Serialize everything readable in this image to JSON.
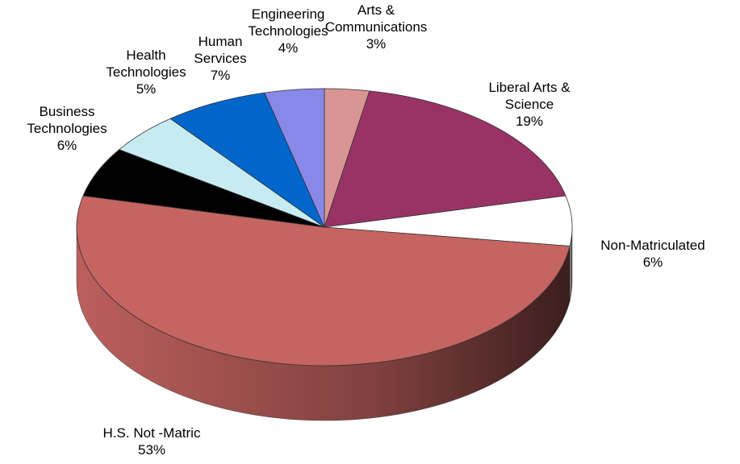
{
  "chart_data": {
    "type": "pie",
    "title": "",
    "slices": [
      {
        "label_lines": [
          "Arts &",
          "Communications"
        ],
        "pct_text": "3%",
        "value": 3,
        "color": "#D99594"
      },
      {
        "label_lines": [
          "Liberal Arts &",
          "Science"
        ],
        "pct_text": "19%",
        "value": 19,
        "color": "#993366"
      },
      {
        "label_lines": [
          "Non-Matriculated"
        ],
        "pct_text": "6%",
        "value": 6,
        "color": "#FFFFFF"
      },
      {
        "label_lines": [
          "H.S. Not -Matric"
        ],
        "pct_text": "53%",
        "value": 53,
        "color": "#C66461"
      },
      {
        "label_lines": [
          "Business",
          "Technologies"
        ],
        "pct_text": "6%",
        "value": 6,
        "color": "#000000"
      },
      {
        "label_lines": [
          "Health",
          "Technologies"
        ],
        "pct_text": "5%",
        "value": 5,
        "color": "#C6ECF2"
      },
      {
        "label_lines": [
          "Human",
          "Services"
        ],
        "pct_text": "7%",
        "value": 7,
        "color": "#0066CC"
      },
      {
        "label_lines": [
          "Engineering",
          "Technologies"
        ],
        "pct_text": "4%",
        "value": 4,
        "color": "#8888E8"
      }
    ]
  }
}
